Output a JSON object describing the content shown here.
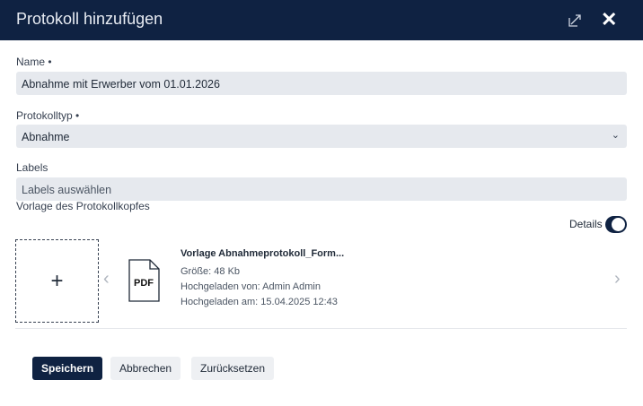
{
  "header": {
    "title": "Protokoll hinzufügen"
  },
  "form": {
    "name_label": "Name •",
    "name_value": "Abnahme mit Erwerber vom 01.01.2026",
    "type_label": "Protokolltyp •",
    "type_value": "Abnahme",
    "labels_label": "Labels",
    "labels_placeholder": "Labels auswählen",
    "template_label": "Vorlage des Protokollkopfes",
    "details_label": "Details",
    "details_on": true
  },
  "file": {
    "icon_text": "PDF",
    "name": "Vorlage Abnahmeprotokoll_Form...",
    "size": "Größe: 48 Kb",
    "uploaded_by": "Hochgeladen von: Admin Admin",
    "uploaded_at": "Hochgeladen am: 15.04.2025 12:43"
  },
  "buttons": {
    "save": "Speichern",
    "cancel": "Abbrechen",
    "reset": "Zurücksetzen"
  }
}
